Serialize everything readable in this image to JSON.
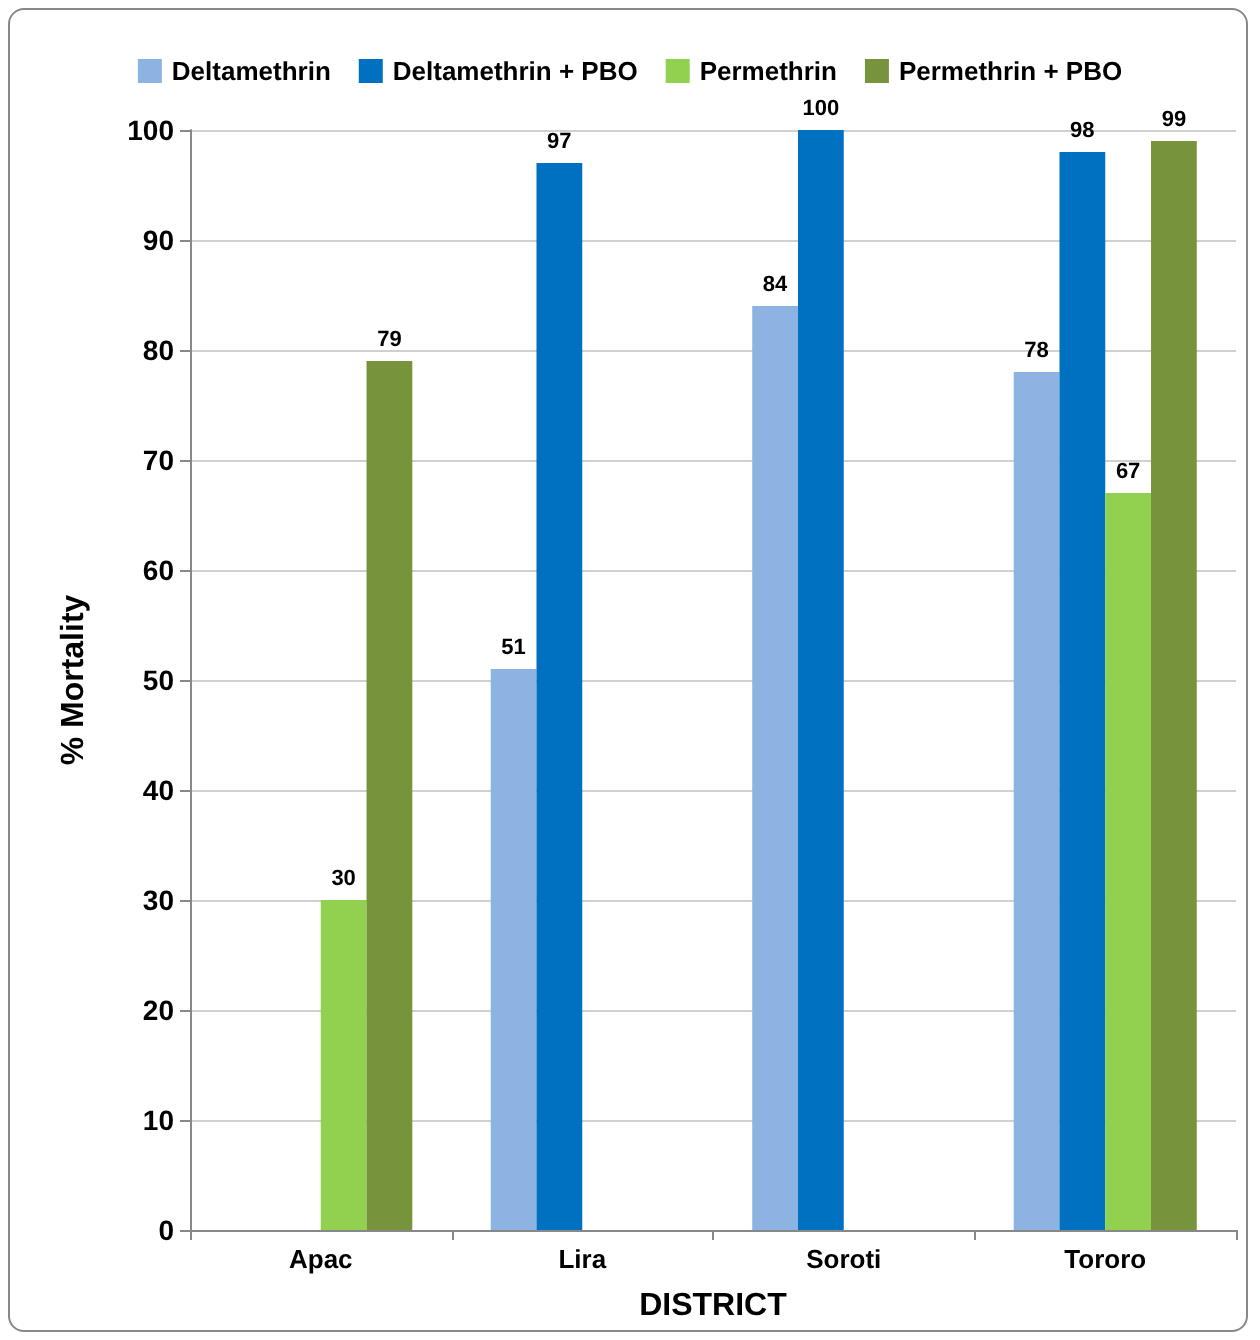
{
  "chart_data": {
    "type": "bar",
    "xlabel": "DISTRICT",
    "ylabel": "% Mortality",
    "categories": [
      "Apac",
      "Lira",
      "Soroti",
      "Tororo"
    ],
    "series": [
      {
        "name": "Deltamethrin",
        "color": "#8db3e2",
        "values": [
          null,
          51,
          84,
          78
        ]
      },
      {
        "name": "Deltamethrin + PBO",
        "color": "#0070c0",
        "values": [
          null,
          97,
          100,
          98
        ]
      },
      {
        "name": "Permethrin",
        "color": "#92d050",
        "values": [
          30,
          null,
          null,
          67
        ]
      },
      {
        "name": "Permethrin + PBO",
        "color": "#77933c",
        "values": [
          79,
          null,
          null,
          99
        ]
      }
    ],
    "ylim": [
      0,
      100
    ],
    "yticks": [
      0,
      10,
      20,
      30,
      40,
      50,
      60,
      70,
      80,
      90,
      100
    ],
    "grid": "y",
    "legend": "top",
    "data_labels": true
  }
}
